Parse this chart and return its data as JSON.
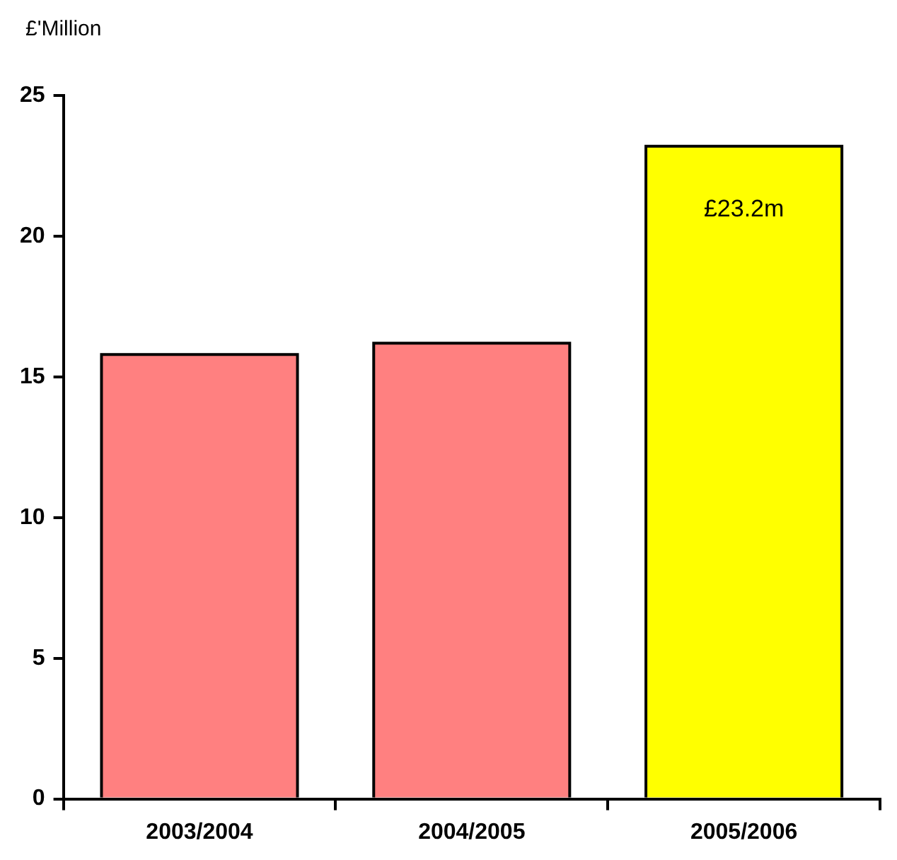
{
  "chart_data": {
    "type": "bar",
    "ylabel": "£'Million",
    "categories": [
      "2003/2004",
      "2004/2005",
      "2005/2006"
    ],
    "values": [
      15.8,
      16.2,
      23.2
    ],
    "value_labels": [
      null,
      null,
      "£23.2m"
    ],
    "colors": [
      "#ff8080",
      "#ff8080",
      "#ffff00"
    ],
    "ylim": [
      0,
      25
    ],
    "yticks": [
      0,
      5,
      10,
      15,
      20,
      25
    ],
    "grid": false,
    "legend": false
  }
}
